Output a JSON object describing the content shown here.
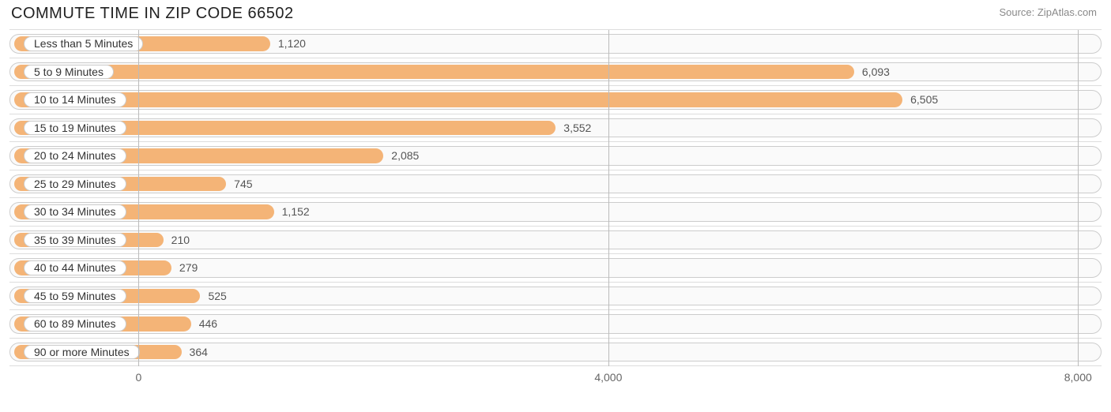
{
  "title": "COMMUTE TIME IN ZIP CODE 66502",
  "source": "Source: ZipAtlas.com",
  "chart": {
    "type": "bar-horizontal",
    "bar_color": "#f4b477",
    "track_border_color": "#cccccc",
    "track_background": "#fafafa",
    "grid_color": "#bbbbbb",
    "row_divider_color": "#dddddd",
    "pill_background": "#ffffff",
    "pill_text_color": "#333333",
    "value_text_color": "#555555",
    "title_color": "#222222",
    "source_color": "#8a8a8a",
    "title_fontsize": 20,
    "label_fontsize": 14,
    "x_axis": {
      "min": -1100,
      "max": 8200,
      "ticks": [
        0,
        4000,
        8000
      ],
      "tick_labels": [
        "0",
        "4,000",
        "8,000"
      ]
    },
    "categories": [
      "Less than 5 Minutes",
      "5 to 9 Minutes",
      "10 to 14 Minutes",
      "15 to 19 Minutes",
      "20 to 24 Minutes",
      "25 to 29 Minutes",
      "30 to 34 Minutes",
      "35 to 39 Minutes",
      "40 to 44 Minutes",
      "45 to 59 Minutes",
      "60 to 89 Minutes",
      "90 or more Minutes"
    ],
    "values": [
      1120,
      6093,
      6505,
      3552,
      2085,
      745,
      1152,
      210,
      279,
      525,
      446,
      364
    ],
    "value_labels": [
      "1,120",
      "6,093",
      "6,505",
      "3,552",
      "2,085",
      "745",
      "1,152",
      "210",
      "279",
      "525",
      "446",
      "364"
    ]
  }
}
